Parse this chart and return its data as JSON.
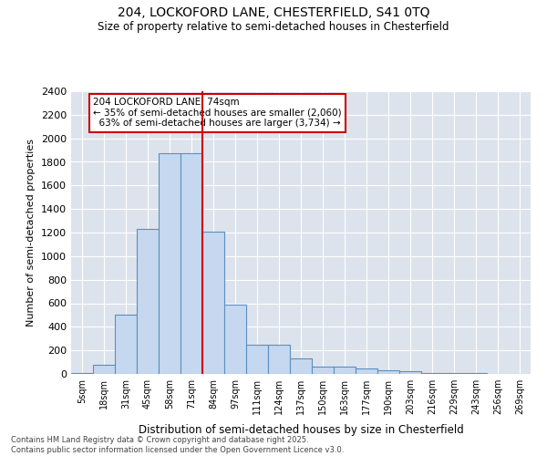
{
  "title1": "204, LOCKOFORD LANE, CHESTERFIELD, S41 0TQ",
  "title2": "Size of property relative to semi-detached houses in Chesterfield",
  "xlabel": "Distribution of semi-detached houses by size in Chesterfield",
  "ylabel": "Number of semi-detached properties",
  "property_label": "204 LOCKOFORD LANE: 74sqm",
  "pct_smaller": 35,
  "count_smaller": 2060,
  "pct_larger": 63,
  "count_larger": 3734,
  "categories": [
    "5sqm",
    "18sqm",
    "31sqm",
    "45sqm",
    "58sqm",
    "71sqm",
    "84sqm",
    "97sqm",
    "111sqm",
    "124sqm",
    "137sqm",
    "150sqm",
    "163sqm",
    "177sqm",
    "190sqm",
    "203sqm",
    "216sqm",
    "229sqm",
    "243sqm",
    "256sqm",
    "269sqm"
  ],
  "values": [
    10,
    75,
    500,
    1230,
    1870,
    1870,
    1210,
    590,
    245,
    245,
    130,
    60,
    60,
    50,
    30,
    25,
    10,
    5,
    5,
    2,
    0
  ],
  "bar_color": "#c5d8ef",
  "bar_edge_color": "#5b8fbe",
  "vline_color": "#cc0000",
  "vline_position": 5.5,
  "annotation_box_color": "#cc0000",
  "ylim": [
    0,
    2400
  ],
  "yticks": [
    0,
    200,
    400,
    600,
    800,
    1000,
    1200,
    1400,
    1600,
    1800,
    2000,
    2200,
    2400
  ],
  "background_color": "#dde3ed",
  "footer": "Contains HM Land Registry data © Crown copyright and database right 2025.\nContains public sector information licensed under the Open Government Licence v3.0.",
  "figsize": [
    6.0,
    5.0
  ],
  "dpi": 100
}
